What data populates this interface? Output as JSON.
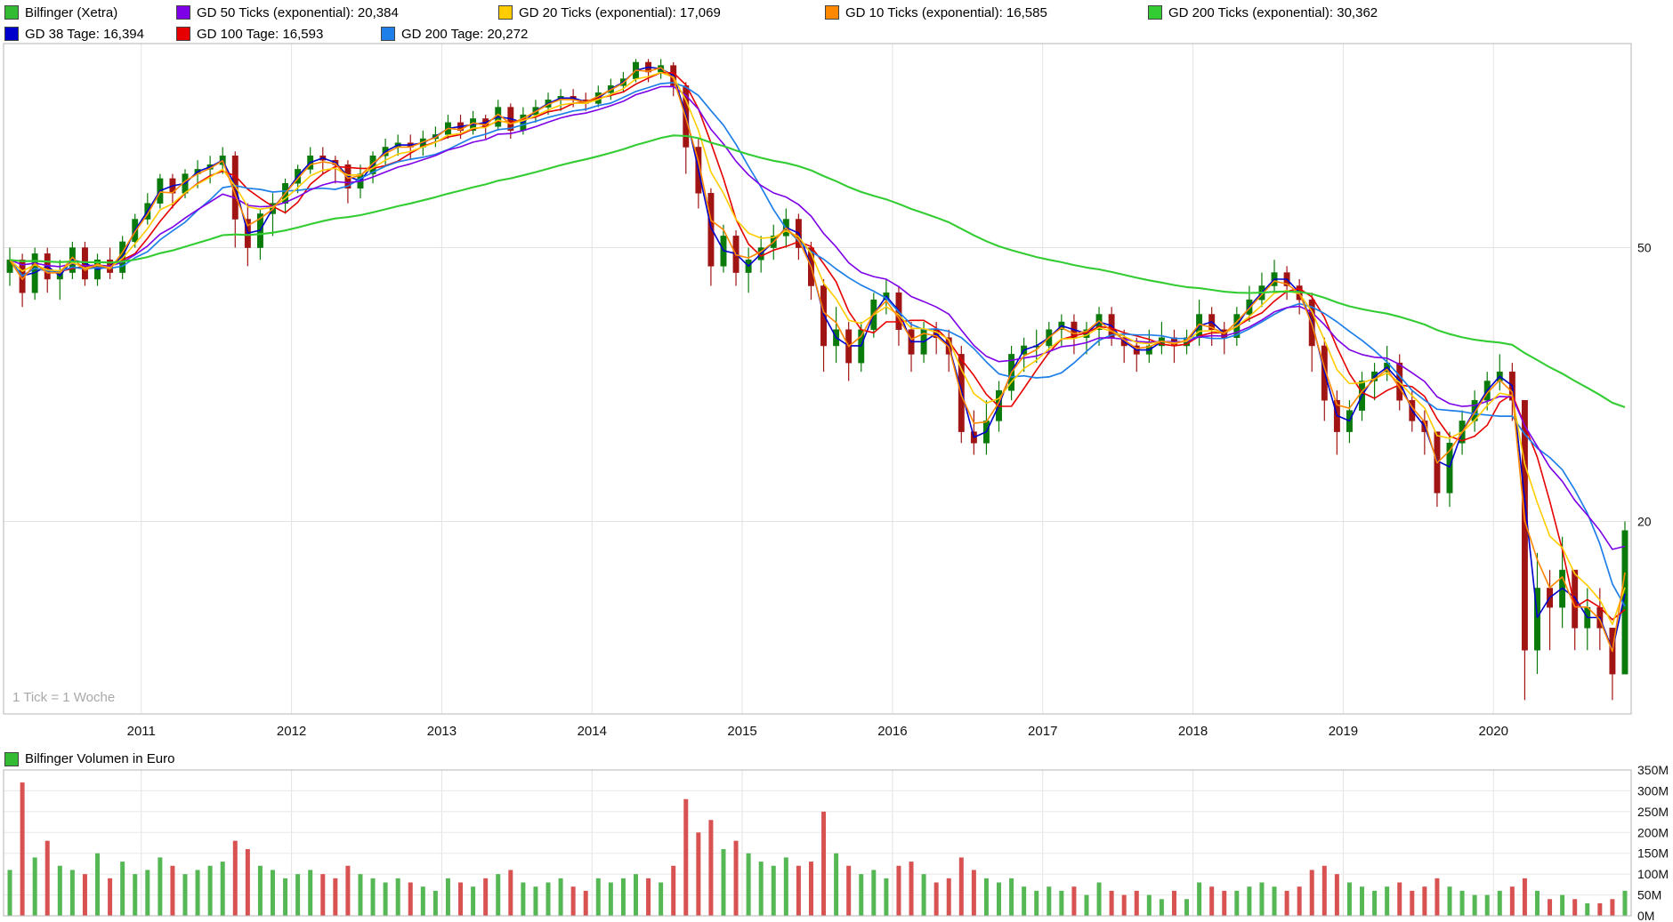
{
  "legend": {
    "rows": [
      {
        "items": [
          {
            "label": "Bilfinger (Xetra)",
            "color": "#33bb33"
          },
          {
            "label": "GD 50 Ticks (exponential): 20,384",
            "color": "#7d00e6"
          },
          {
            "label": "GD 20 Ticks (exponential): 17,069",
            "color": "#ffcc00"
          },
          {
            "label": "GD 10 Ticks (exponential): 16,585",
            "color": "#ff8800"
          },
          {
            "label": "GD 200 Ticks (exponential): 30,362",
            "color": "#33cc33"
          }
        ]
      },
      {
        "items": [
          {
            "label": "GD 38 Tage: 16,394",
            "color": "#0000cc"
          },
          {
            "label": "GD 100 Tage: 16,593",
            "color": "#e60000"
          },
          {
            "label": "GD 200 Tage: 20,272",
            "color": "#1f7fe8"
          }
        ]
      }
    ]
  },
  "volume_legend": {
    "label": "Bilfinger Volumen in Euro",
    "color": "#33bb33"
  },
  "chart_data": {
    "type": "candlestick+volume",
    "title": "Bilfinger (Xetra)",
    "tick_note": "1 Tick = 1 Woche",
    "price_axis": {
      "scale": "log",
      "range": [
        10.5,
        99
      ],
      "ticks": [
        {
          "label": "50",
          "value": 50
        },
        {
          "label": "20",
          "value": 20
        }
      ]
    },
    "volume_axis": {
      "unit": "M",
      "range": [
        0,
        350
      ],
      "ticks": [
        {
          "label": "350M",
          "value": 350
        },
        {
          "label": "300M",
          "value": 300
        },
        {
          "label": "250M",
          "value": 250
        },
        {
          "label": "200M",
          "value": 200
        },
        {
          "label": "150M",
          "value": 150
        },
        {
          "label": "100M",
          "value": 100
        },
        {
          "label": "50M",
          "value": 50
        },
        {
          "label": "0M",
          "value": 0
        }
      ]
    },
    "x_years": [
      {
        "label": "2011",
        "index": 11
      },
      {
        "label": "2012",
        "index": 23
      },
      {
        "label": "2013",
        "index": 35
      },
      {
        "label": "2014",
        "index": 47
      },
      {
        "label": "2015",
        "index": 59
      },
      {
        "label": "2016",
        "index": 71
      },
      {
        "label": "2017",
        "index": 83
      },
      {
        "label": "2018",
        "index": 95
      },
      {
        "label": "2019",
        "index": 107
      },
      {
        "label": "2020",
        "index": 119
      }
    ],
    "weeks_per_point": 4.345,
    "candle_colors": {
      "up": "#0a7a0a",
      "down": "#a01414"
    },
    "volume_colors": {
      "up": "#55b855",
      "down": "#d95252"
    },
    "moving_averages": [
      {
        "id": "gd38tage",
        "method": "sma",
        "window_weeks": 7.6,
        "color": "#0000cc",
        "width": 1.6,
        "value": "16,394"
      },
      {
        "id": "gd100tage",
        "method": "sma",
        "window_weeks": 20,
        "color": "#e60000",
        "width": 1.6,
        "value": "16,593"
      },
      {
        "id": "gd200tage",
        "method": "sma",
        "window_weeks": 40,
        "color": "#1f7fe8",
        "width": 1.7,
        "value": "20,272"
      },
      {
        "id": "gd50ticks",
        "method": "ema",
        "window_weeks": 50,
        "color": "#7d00e6",
        "width": 1.6,
        "value": "20,384"
      },
      {
        "id": "gd20ticks",
        "method": "ema",
        "window_weeks": 20,
        "color": "#ffcc00",
        "width": 1.6,
        "value": "17,069"
      },
      {
        "id": "gd10ticks",
        "method": "ema",
        "window_weeks": 10,
        "color": "#ff8800",
        "width": 1.6,
        "value": "16,585"
      },
      {
        "id": "gd200ticks",
        "method": "ema",
        "window_weeks": 200,
        "color": "#33cc33",
        "width": 2.1,
        "value": "30,362"
      }
    ],
    "ohlcv": [
      [
        "2010-02",
        46,
        50,
        44,
        48,
        110
      ],
      [
        "2010-03",
        48,
        49,
        41,
        43,
        320
      ],
      [
        "2010-04",
        43,
        50,
        42,
        49,
        140
      ],
      [
        "2010-05",
        49,
        50,
        43,
        45,
        180
      ],
      [
        "2010-06",
        45,
        48,
        42,
        46,
        120
      ],
      [
        "2010-07",
        46,
        51,
        45,
        50,
        110
      ],
      [
        "2010-08",
        50,
        51,
        44,
        45,
        100
      ],
      [
        "2010-09",
        45,
        49,
        44,
        48,
        150
      ],
      [
        "2010-10",
        48,
        50,
        45,
        46,
        90
      ],
      [
        "2010-11",
        46,
        52,
        45,
        51,
        130
      ],
      [
        "2010-12",
        51,
        56,
        50,
        55,
        100
      ],
      [
        "2011-01",
        55,
        60,
        54,
        58,
        110
      ],
      [
        "2011-02",
        58,
        64,
        57,
        63,
        140
      ],
      [
        "2011-03",
        63,
        64,
        57,
        60,
        120
      ],
      [
        "2011-04",
        60,
        65,
        59,
        64,
        100
      ],
      [
        "2011-05",
        64,
        67,
        61,
        65,
        110
      ],
      [
        "2011-06",
        65,
        68,
        62,
        66,
        120
      ],
      [
        "2011-07",
        66,
        70,
        64,
        68,
        130
      ],
      [
        "2011-08",
        68,
        69,
        50,
        55,
        180
      ],
      [
        "2011-09",
        55,
        58,
        47,
        50,
        160
      ],
      [
        "2011-10",
        50,
        57,
        48,
        56,
        120
      ],
      [
        "2011-11",
        56,
        60,
        52,
        58,
        110
      ],
      [
        "2011-12",
        58,
        63,
        56,
        62,
        90
      ],
      [
        "2012-01",
        62,
        66,
        60,
        65,
        100
      ],
      [
        "2012-02",
        65,
        70,
        64,
        68,
        110
      ],
      [
        "2012-03",
        68,
        70,
        64,
        67,
        100
      ],
      [
        "2012-04",
        67,
        68,
        62,
        66,
        90
      ],
      [
        "2012-05",
        66,
        67,
        58,
        61,
        120
      ],
      [
        "2012-06",
        61,
        66,
        59,
        64,
        100
      ],
      [
        "2012-07",
        64,
        69,
        62,
        68,
        90
      ],
      [
        "2012-08",
        68,
        72,
        66,
        70,
        80
      ],
      [
        "2012-09",
        70,
        73,
        68,
        71,
        90
      ],
      [
        "2012-10",
        71,
        73,
        67,
        70,
        80
      ],
      [
        "2012-11",
        70,
        74,
        68,
        72,
        70
      ],
      [
        "2012-12",
        72,
        75,
        70,
        73,
        60
      ],
      [
        "2013-01",
        73,
        78,
        72,
        76,
        90
      ],
      [
        "2013-02",
        76,
        78,
        72,
        74,
        80
      ],
      [
        "2013-03",
        74,
        79,
        73,
        77,
        70
      ],
      [
        "2013-04",
        77,
        78,
        72,
        75,
        90
      ],
      [
        "2013-05",
        75,
        82,
        74,
        80,
        100
      ],
      [
        "2013-06",
        80,
        81,
        72,
        74,
        110
      ],
      [
        "2013-07",
        74,
        80,
        73,
        78,
        80
      ],
      [
        "2013-08",
        78,
        82,
        76,
        80,
        70
      ],
      [
        "2013-09",
        80,
        84,
        78,
        82,
        80
      ],
      [
        "2013-10",
        82,
        85,
        79,
        83,
        90
      ],
      [
        "2013-11",
        83,
        85,
        80,
        82,
        70
      ],
      [
        "2013-12",
        82,
        84,
        79,
        81,
        60
      ],
      [
        "2014-01",
        81,
        86,
        80,
        84,
        90
      ],
      [
        "2014-02",
        84,
        88,
        82,
        86,
        80
      ],
      [
        "2014-03",
        86,
        90,
        84,
        88,
        90
      ],
      [
        "2014-04",
        88,
        94,
        87,
        93,
        100
      ],
      [
        "2014-05",
        93,
        94,
        87,
        90,
        90
      ],
      [
        "2014-06",
        90,
        94,
        88,
        92,
        80
      ],
      [
        "2014-07",
        92,
        93,
        83,
        86,
        120
      ],
      [
        "2014-08",
        86,
        87,
        64,
        70,
        280
      ],
      [
        "2014-09",
        70,
        72,
        57,
        60,
        200
      ],
      [
        "2014-10",
        60,
        61,
        44,
        47,
        230
      ],
      [
        "2014-11",
        47,
        54,
        46,
        52,
        160
      ],
      [
        "2014-12",
        52,
        53,
        44,
        46,
        180
      ],
      [
        "2015-01",
        46,
        50,
        43,
        48,
        150
      ],
      [
        "2015-02",
        48,
        52,
        46,
        50,
        130
      ],
      [
        "2015-03",
        50,
        54,
        48,
        52,
        120
      ],
      [
        "2015-04",
        52,
        57,
        50,
        55,
        140
      ],
      [
        "2015-05",
        55,
        56,
        48,
        50,
        120
      ],
      [
        "2015-06",
        50,
        51,
        42,
        44,
        130
      ],
      [
        "2015-07",
        44,
        45,
        33,
        36,
        250
      ],
      [
        "2015-08",
        36,
        41,
        34,
        38,
        150
      ],
      [
        "2015-09",
        38,
        39,
        32,
        34,
        120
      ],
      [
        "2015-10",
        34,
        39,
        33,
        38,
        100
      ],
      [
        "2015-11",
        38,
        43,
        37,
        42,
        110
      ],
      [
        "2015-12",
        42,
        45,
        40,
        43,
        90
      ],
      [
        "2016-01",
        43,
        44,
        36,
        38,
        120
      ],
      [
        "2016-02",
        38,
        39,
        33,
        35,
        130
      ],
      [
        "2016-03",
        35,
        39,
        34,
        38,
        100
      ],
      [
        "2016-04",
        38,
        39,
        35,
        37,
        80
      ],
      [
        "2016-05",
        37,
        38,
        33,
        35,
        90
      ],
      [
        "2016-06",
        35,
        36,
        26,
        27,
        140
      ],
      [
        "2016-07",
        27,
        29,
        25,
        26,
        110
      ],
      [
        "2016-08",
        26,
        30,
        25,
        28,
        90
      ],
      [
        "2016-09",
        28,
        32,
        27,
        31,
        80
      ],
      [
        "2016-10",
        31,
        36,
        30,
        35,
        90
      ],
      [
        "2016-11",
        35,
        37,
        33,
        36,
        70
      ],
      [
        "2016-12",
        36,
        38,
        34,
        36,
        60
      ],
      [
        "2017-01",
        36,
        39,
        35,
        38,
        70
      ],
      [
        "2017-02",
        38,
        40,
        36,
        39,
        60
      ],
      [
        "2017-03",
        39,
        40,
        35,
        37,
        70
      ],
      [
        "2017-04",
        37,
        39,
        35,
        38,
        50
      ],
      [
        "2017-05",
        38,
        41,
        36,
        40,
        80
      ],
      [
        "2017-06",
        40,
        41,
        36,
        37,
        60
      ],
      [
        "2017-07",
        37,
        38,
        34,
        36,
        50
      ],
      [
        "2017-08",
        36,
        37,
        33,
        35,
        60
      ],
      [
        "2017-09",
        35,
        38,
        34,
        36,
        50
      ],
      [
        "2017-10",
        36,
        39,
        35,
        37,
        40
      ],
      [
        "2017-11",
        37,
        38,
        34,
        36,
        60
      ],
      [
        "2017-12",
        36,
        38,
        35,
        37,
        40
      ],
      [
        "2018-01",
        37,
        42,
        36,
        40,
        80
      ],
      [
        "2018-02",
        40,
        41,
        36,
        38,
        70
      ],
      [
        "2018-03",
        38,
        39,
        35,
        37,
        60
      ],
      [
        "2018-04",
        37,
        41,
        36,
        40,
        60
      ],
      [
        "2018-05",
        40,
        44,
        39,
        42,
        70
      ],
      [
        "2018-06",
        42,
        46,
        41,
        44,
        80
      ],
      [
        "2018-07",
        44,
        48,
        43,
        46,
        70
      ],
      [
        "2018-08",
        46,
        47,
        42,
        44,
        60
      ],
      [
        "2018-09",
        44,
        45,
        40,
        42,
        70
      ],
      [
        "2018-10",
        42,
        43,
        33,
        36,
        110
      ],
      [
        "2018-11",
        36,
        37,
        28,
        30,
        120
      ],
      [
        "2018-12",
        30,
        31,
        25,
        27,
        100
      ],
      [
        "2019-01",
        27,
        30,
        26,
        29,
        80
      ],
      [
        "2019-02",
        29,
        33,
        28,
        32,
        70
      ],
      [
        "2019-03",
        32,
        34,
        30,
        33,
        60
      ],
      [
        "2019-04",
        33,
        36,
        32,
        34,
        70
      ],
      [
        "2019-05",
        34,
        35,
        29,
        30,
        80
      ],
      [
        "2019-06",
        30,
        31,
        27,
        28,
        60
      ],
      [
        "2019-07",
        28,
        29,
        25,
        27,
        70
      ],
      [
        "2019-08",
        27,
        27,
        21,
        22,
        90
      ],
      [
        "2019-09",
        22,
        27,
        21,
        26,
        70
      ],
      [
        "2019-10",
        26,
        29,
        25,
        28,
        60
      ],
      [
        "2019-11",
        28,
        31,
        27,
        30,
        50
      ],
      [
        "2019-12",
        30,
        33,
        29,
        32,
        50
      ],
      [
        "2020-01",
        32,
        35,
        31,
        33,
        60
      ],
      [
        "2020-02",
        33,
        34,
        28,
        30,
        70
      ],
      [
        "2020-03",
        30,
        30,
        11,
        13,
        90
      ],
      [
        "2020-04",
        13,
        18,
        12,
        16,
        60
      ],
      [
        "2020-05",
        16,
        17,
        13,
        15,
        40
      ],
      [
        "2020-06",
        15,
        19,
        14,
        17,
        50
      ],
      [
        "2020-07",
        17,
        17,
        13,
        14,
        40
      ],
      [
        "2020-08",
        14,
        16,
        13,
        15,
        30
      ],
      [
        "2020-09",
        15,
        16,
        13,
        14,
        30
      ],
      [
        "2020-10",
        14,
        14,
        11,
        12,
        40
      ],
      [
        "2020-11",
        12,
        20,
        12,
        19.4,
        60
      ]
    ]
  }
}
